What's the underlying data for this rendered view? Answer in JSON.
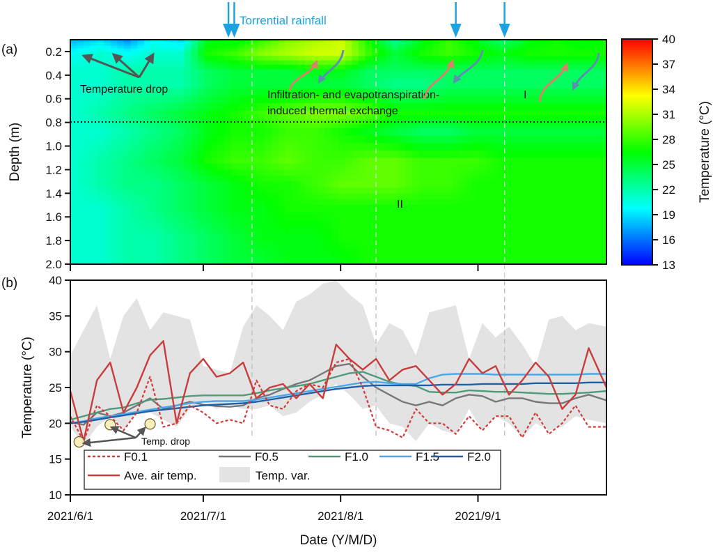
{
  "chart_data": [
    {
      "panel": "(a)",
      "type": "heatmap",
      "title": "",
      "xlabel": "",
      "ylabel": "Depth (m)",
      "ylim": [
        0.1,
        2.0
      ],
      "yticks": [
        "0.2",
        "0.4",
        "0.6",
        "0.8",
        "1.0",
        "1.2",
        "1.4",
        "1.6",
        "1.8",
        "2.0"
      ],
      "ytick_values": [
        0.2,
        0.4,
        0.6,
        0.8,
        1.0,
        1.2,
        1.4,
        1.6,
        1.8,
        2.0
      ],
      "xlim_days": [
        0,
        121
      ],
      "colorbar": {
        "label": "Temperature (°C)",
        "range": [
          13,
          40
        ],
        "ticks": [
          "40",
          "37",
          "34",
          "31",
          "28",
          "25",
          "22",
          "19",
          "16",
          "13"
        ],
        "tick_values": [
          40,
          37,
          34,
          31,
          28,
          25,
          22,
          19,
          16,
          13
        ],
        "colors": [
          "#0000ff",
          "#0080ff",
          "#00ffff",
          "#00ff80",
          "#00ff00",
          "#80ff00",
          "#ffff00",
          "#ff8000",
          "#ff0000"
        ]
      },
      "divider_depth": 0.8,
      "grid": [
        [
          18,
          19,
          17,
          20,
          19,
          26,
          26,
          28,
          30,
          31,
          32,
          27,
          23,
          26,
          28,
          26,
          24,
          26,
          27,
          26,
          27
        ],
        [
          20,
          21,
          20,
          21,
          21,
          27,
          28,
          30,
          31,
          32,
          32,
          28,
          25,
          27,
          28,
          27,
          26,
          27,
          27,
          27,
          27
        ],
        [
          21,
          21,
          22,
          22,
          22,
          24,
          25,
          25,
          25,
          26,
          26,
          24,
          24,
          24,
          24,
          24,
          24,
          24,
          24,
          24,
          24
        ],
        [
          21,
          21,
          22,
          22,
          22,
          24,
          25,
          25,
          25,
          25,
          25,
          24,
          23,
          23,
          24,
          24,
          24,
          24,
          24,
          24,
          24
        ],
        [
          21,
          22,
          23,
          24,
          25,
          26,
          27,
          28,
          29,
          30,
          30,
          29,
          27,
          27,
          27,
          27,
          27,
          27,
          27,
          27,
          27
        ],
        [
          21,
          21,
          22,
          23,
          24,
          26,
          27,
          27,
          28,
          28,
          27,
          26,
          25,
          24,
          24,
          25,
          25,
          25,
          25,
          25,
          25
        ],
        [
          21,
          22,
          23,
          24,
          25,
          27,
          28,
          28,
          29,
          28,
          28,
          29,
          29,
          28,
          28,
          28,
          27,
          27,
          27,
          27,
          27
        ],
        [
          21,
          22,
          23,
          23,
          24,
          25,
          26,
          27,
          27,
          28,
          29,
          29,
          29,
          28,
          28,
          27,
          27,
          27,
          27,
          27,
          27
        ],
        [
          21,
          21,
          22,
          23,
          24,
          25,
          26,
          26,
          27,
          27,
          27,
          27,
          27,
          27,
          27,
          27,
          27,
          27,
          27,
          27,
          27
        ],
        [
          21,
          21,
          22,
          22,
          23,
          24,
          25,
          26,
          26,
          26,
          27,
          27,
          27,
          27,
          27,
          27,
          27,
          27,
          27,
          27,
          27
        ],
        [
          21,
          21,
          22,
          22,
          23,
          24,
          25,
          25,
          26,
          26,
          26,
          27,
          27,
          27,
          27,
          27,
          27,
          27,
          27,
          27,
          27
        ]
      ],
      "grid_depths": [
        0.1,
        0.2,
        0.35,
        0.45,
        0.7,
        0.85,
        1.1,
        1.3,
        1.5,
        1.75,
        2.0
      ],
      "annotations": [
        {
          "text": "Temperature drop"
        },
        {
          "text": "Infiltration- and evapotranspiration-"
        },
        {
          "text": "induced thermal exchange"
        },
        {
          "text": "I"
        },
        {
          "text": "II"
        },
        {
          "text": "Torrential rainfall"
        }
      ],
      "rainfall_event_days": [
        36,
        37,
        87,
        98
      ]
    },
    {
      "panel": "(b)",
      "type": "line",
      "title": "",
      "xlabel": "Date (Y/M/D)",
      "ylabel": "Temperature (°C)",
      "xlim_days": [
        0,
        121
      ],
      "ylim": [
        10,
        40
      ],
      "xticks": [
        "2021/6/1",
        "2021/7/1",
        "2021/8/1",
        "2021/9/1"
      ],
      "xtick_days": [
        0,
        30,
        61,
        92
      ],
      "yticks": [
        "10",
        "15",
        "20",
        "25",
        "30",
        "35",
        "40"
      ],
      "ytick_values": [
        10,
        15,
        20,
        25,
        30,
        35,
        40
      ],
      "dashed_vlines_days": [
        41,
        69,
        98
      ],
      "x_days": [
        0,
        3,
        6,
        9,
        12,
        15,
        18,
        21,
        24,
        27,
        30,
        33,
        36,
        39,
        42,
        45,
        48,
        51,
        54,
        57,
        60,
        63,
        66,
        69,
        72,
        75,
        78,
        81,
        84,
        87,
        90,
        93,
        96,
        99,
        102,
        105,
        108,
        111,
        114,
        117,
        121
      ],
      "series": [
        {
          "name": "F0.1",
          "style": "dotted",
          "color": "#d23a3a",
          "values": [
            21,
            17.5,
            22.5,
            21,
            19,
            21.5,
            26.5,
            19.5,
            20,
            22.5,
            21.5,
            20,
            20.5,
            20,
            26,
            22.5,
            22,
            24.5,
            25.5,
            25,
            28.5,
            29,
            25,
            19.5,
            19,
            18,
            22,
            20,
            20,
            18.5,
            21,
            19,
            21,
            21,
            18,
            21.5,
            18.5,
            20,
            22.5,
            19.5,
            19.5
          ]
        },
        {
          "name": "F0.5",
          "style": "solid",
          "color": "#777777",
          "values": [
            20.2,
            19.8,
            21.5,
            21,
            21.5,
            22.5,
            23.5,
            22,
            22.5,
            23,
            22.6,
            22.4,
            22.3,
            22.5,
            23.5,
            24,
            24.8,
            25.5,
            26,
            27,
            28,
            28.3,
            26.5,
            25,
            24,
            23,
            22.5,
            23,
            22.5,
            23.5,
            24,
            23.8,
            23,
            23.5,
            23.5,
            23,
            22.8,
            22.8,
            23.5,
            24,
            23.2
          ]
        },
        {
          "name": "F1.0",
          "style": "solid",
          "color": "#4e9a7a",
          "values": [
            20.5,
            21,
            21.5,
            22,
            22.2,
            22.8,
            23.3,
            23.4,
            23.6,
            23.8,
            23.9,
            23.9,
            23.9,
            23.9,
            24.2,
            24.6,
            24.9,
            25.2,
            25.5,
            26,
            26.5,
            27,
            27.2,
            26.5,
            25.8,
            25.4,
            25.2,
            24.4,
            24.3,
            24.3,
            24.6,
            24.5,
            24.4,
            24.4,
            24.3,
            24.2,
            24.1,
            24.1,
            24.2,
            24.3,
            24.5
          ]
        },
        {
          "name": "F1.5",
          "style": "solid",
          "color": "#4aa8e8",
          "values": [
            20,
            20.3,
            20.7,
            21,
            21.3,
            21.6,
            21.9,
            22.2,
            22.5,
            22.8,
            23,
            23.1,
            23.1,
            23.1,
            23.3,
            23.6,
            23.9,
            24.2,
            24.5,
            24.8,
            25.1,
            25.4,
            25.7,
            25.8,
            25.6,
            25.5,
            25.5,
            26.3,
            26.8,
            26.9,
            26.9,
            26.9,
            26.8,
            26.8,
            26.8,
            26.8,
            26.8,
            26.8,
            26.8,
            26.9,
            26.9
          ]
        },
        {
          "name": "F2.0",
          "style": "solid",
          "color": "#1f5fa8",
          "values": [
            20,
            20.2,
            20.5,
            20.8,
            21.1,
            21.4,
            21.7,
            21.9,
            22.1,
            22.3,
            22.5,
            22.6,
            22.7,
            22.8,
            23,
            23.3,
            23.6,
            23.9,
            24.2,
            24.5,
            24.8,
            25,
            25.2,
            25.3,
            25.3,
            25.3,
            25.3,
            25.3,
            25.4,
            25.4,
            25.4,
            25.5,
            25.5,
            25.5,
            25.5,
            25.6,
            25.6,
            25.6,
            25.6,
            25.7,
            25.7
          ]
        },
        {
          "name": "Ave. air temp.",
          "style": "solid",
          "color": "#c83c3c",
          "values": [
            24.5,
            17.5,
            26,
            28.5,
            21.5,
            25,
            29.5,
            31.5,
            20,
            27,
            29,
            26.5,
            27,
            28.5,
            23.5,
            25,
            25.5,
            23.5,
            25.5,
            23.5,
            31,
            29,
            27.5,
            29,
            26,
            27.5,
            28,
            26,
            24,
            25.5,
            29,
            27,
            28,
            24,
            26,
            28.5,
            26.5,
            22,
            24,
            30.5,
            25
          ]
        }
      ],
      "bands": [
        {
          "name": "Temp. var.",
          "color": "#e3e3e3",
          "upper": [
            29.5,
            33,
            36.5,
            29,
            35,
            37.5,
            33,
            35.5,
            35,
            34.5,
            28,
            27.5,
            27,
            33.5,
            36.5,
            35,
            33,
            37,
            38,
            39.5,
            40,
            38,
            36.5,
            31,
            34,
            33,
            29.5,
            35.5,
            36,
            36.5,
            29,
            34,
            32,
            33.5,
            31,
            28,
            34.5,
            35,
            33,
            34,
            33.5
          ],
          "lower": [
            19.5,
            17,
            19.5,
            21,
            19,
            21.5,
            21.5,
            20.5,
            19.5,
            22,
            23,
            22,
            22.5,
            22,
            22,
            22.5,
            21,
            21.5,
            23,
            24,
            25.5,
            24,
            22,
            22.5,
            20,
            19.5,
            17.5,
            20,
            19,
            18.5,
            22,
            19,
            21,
            20,
            18,
            20,
            19,
            19.5,
            21,
            20.5,
            20
          ]
        }
      ],
      "legend": {
        "placement": "bottom-left",
        "entries": [
          "F0.1",
          "F0.5",
          "F1.0",
          "F1.5",
          "F2.0",
          "Ave. air temp.",
          "Temp. var."
        ]
      },
      "annotations": [
        {
          "text": "Temp. drop"
        }
      ],
      "temp_drop_days": [
        2,
        9,
        18
      ]
    }
  ],
  "figure": {
    "panel_a_label": "(a)",
    "panel_b_label": "(b)",
    "depth_axis_title": "Depth (m)",
    "colorbar_title": "Temperature (°C)",
    "temp_axis_title": "Temperature (°C)",
    "date_axis_title": "Date (Y/M/D)",
    "rainfall_label": "Torrential rainfall",
    "temp_drop_label": "Temperature drop",
    "exchange_label_1": "Infiltration- and evapotranspiration-",
    "exchange_label_2": "induced thermal exchange",
    "zone_1": "I",
    "zone_2": "II",
    "temp_drop_short": "Temp. drop"
  }
}
